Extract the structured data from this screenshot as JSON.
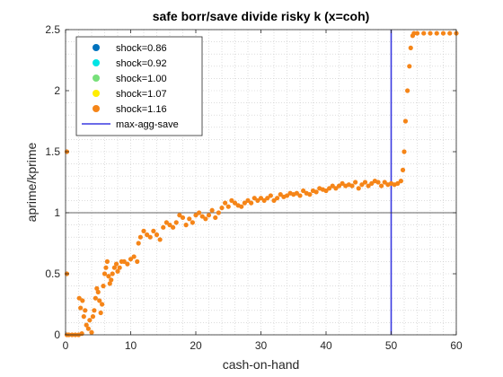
{
  "chart_data": {
    "type": "scatter",
    "title": "safe borr/save divide risky k (x=coh)",
    "xlabel": "cash-on-hand",
    "ylabel": "aprime/kprime",
    "xlim": [
      0,
      60
    ],
    "ylim": [
      0,
      2.5
    ],
    "xticks": [
      "0",
      "10",
      "20",
      "30",
      "40",
      "50",
      "60"
    ],
    "yticks": [
      "0",
      "0.5",
      "1",
      "1.5",
      "2",
      "2.5"
    ],
    "grid": "minor-dotted",
    "legend_position": "top-left",
    "series": [
      {
        "name": "shock=0.86",
        "color": "#0072bd",
        "points": []
      },
      {
        "name": "shock=0.92",
        "color": "#00e5e5",
        "points": []
      },
      {
        "name": "shock=1.00",
        "color": "#77e07a",
        "points": []
      },
      {
        "name": "shock=1.07",
        "color": "#ffee00",
        "points": []
      },
      {
        "name": "shock=1.16",
        "color": "#f58518",
        "points": [
          [
            0.2,
            0
          ],
          [
            0.2,
            0.5
          ],
          [
            0.2,
            1.5
          ],
          [
            0.5,
            0
          ],
          [
            1,
            0
          ],
          [
            1.5,
            0
          ],
          [
            2,
            0
          ],
          [
            2.5,
            0.01
          ],
          [
            2.1,
            0.3
          ],
          [
            2.3,
            0.22
          ],
          [
            2.6,
            0.28
          ],
          [
            2.8,
            0.15
          ],
          [
            3,
            0.2
          ],
          [
            3.2,
            0.08
          ],
          [
            3.5,
            0.05
          ],
          [
            3.7,
            0.12
          ],
          [
            4,
            0.02
          ],
          [
            4.2,
            0.15
          ],
          [
            4.4,
            0.2
          ],
          [
            4.6,
            0.3
          ],
          [
            4.8,
            0.38
          ],
          [
            5,
            0.35
          ],
          [
            5.2,
            0.28
          ],
          [
            5.4,
            0.18
          ],
          [
            5.6,
            0.25
          ],
          [
            5.8,
            0.4
          ],
          [
            6,
            0.5
          ],
          [
            6.2,
            0.55
          ],
          [
            6.4,
            0.6
          ],
          [
            6.6,
            0.48
          ],
          [
            6.8,
            0.42
          ],
          [
            7,
            0.45
          ],
          [
            7.2,
            0.5
          ],
          [
            7.5,
            0.55
          ],
          [
            7.8,
            0.58
          ],
          [
            8,
            0.52
          ],
          [
            8.3,
            0.55
          ],
          [
            8.6,
            0.6
          ],
          [
            9,
            0.6
          ],
          [
            9.5,
            0.58
          ],
          [
            10,
            0.62
          ],
          [
            10.5,
            0.64
          ],
          [
            11,
            0.6
          ],
          [
            11.2,
            0.75
          ],
          [
            11.5,
            0.8
          ],
          [
            12,
            0.85
          ],
          [
            12.5,
            0.82
          ],
          [
            13,
            0.8
          ],
          [
            13.5,
            0.85
          ],
          [
            14,
            0.82
          ],
          [
            14.5,
            0.78
          ],
          [
            15,
            0.88
          ],
          [
            15.5,
            0.92
          ],
          [
            16,
            0.9
          ],
          [
            16.5,
            0.88
          ],
          [
            17,
            0.92
          ],
          [
            17.5,
            0.98
          ],
          [
            18,
            0.96
          ],
          [
            18.5,
            0.9
          ],
          [
            19,
            0.95
          ],
          [
            19.5,
            0.92
          ],
          [
            20,
            0.98
          ],
          [
            20.5,
            1.0
          ],
          [
            21,
            0.97
          ],
          [
            21.5,
            0.95
          ],
          [
            22,
            0.98
          ],
          [
            22.5,
            1.02
          ],
          [
            23,
            0.96
          ],
          [
            23.5,
            1.0
          ],
          [
            24,
            1.04
          ],
          [
            24.5,
            1.08
          ],
          [
            25,
            1.05
          ],
          [
            25.5,
            1.1
          ],
          [
            26,
            1.08
          ],
          [
            26.5,
            1.06
          ],
          [
            27,
            1.05
          ],
          [
            27.5,
            1.08
          ],
          [
            28,
            1.1
          ],
          [
            28.5,
            1.08
          ],
          [
            29,
            1.12
          ],
          [
            29.5,
            1.1
          ],
          [
            30,
            1.12
          ],
          [
            30.5,
            1.1
          ],
          [
            31,
            1.12
          ],
          [
            31.5,
            1.14
          ],
          [
            32,
            1.1
          ],
          [
            32.5,
            1.12
          ],
          [
            33,
            1.15
          ],
          [
            33.5,
            1.13
          ],
          [
            34,
            1.14
          ],
          [
            34.5,
            1.16
          ],
          [
            35,
            1.15
          ],
          [
            35.5,
            1.16
          ],
          [
            36,
            1.14
          ],
          [
            36.5,
            1.18
          ],
          [
            37,
            1.16
          ],
          [
            37.5,
            1.15
          ],
          [
            38,
            1.18
          ],
          [
            38.5,
            1.17
          ],
          [
            39,
            1.2
          ],
          [
            39.5,
            1.19
          ],
          [
            40,
            1.18
          ],
          [
            40.5,
            1.2
          ],
          [
            41,
            1.22
          ],
          [
            41.5,
            1.2
          ],
          [
            42,
            1.22
          ],
          [
            42.5,
            1.24
          ],
          [
            43,
            1.22
          ],
          [
            43.5,
            1.23
          ],
          [
            44,
            1.22
          ],
          [
            44.5,
            1.25
          ],
          [
            45,
            1.2
          ],
          [
            45.5,
            1.23
          ],
          [
            46,
            1.25
          ],
          [
            46.5,
            1.22
          ],
          [
            47,
            1.24
          ],
          [
            47.5,
            1.26
          ],
          [
            48,
            1.25
          ],
          [
            48.5,
            1.22
          ],
          [
            49,
            1.25
          ],
          [
            49.5,
            1.23
          ],
          [
            50,
            1.24
          ],
          [
            50.5,
            1.23
          ],
          [
            51,
            1.24
          ],
          [
            51.5,
            1.26
          ],
          [
            51.8,
            1.35
          ],
          [
            52,
            1.5
          ],
          [
            52.2,
            1.75
          ],
          [
            52.5,
            2.0
          ],
          [
            52.8,
            2.2
          ],
          [
            53,
            2.35
          ],
          [
            53.3,
            2.45
          ],
          [
            53.5,
            2.47
          ],
          [
            54,
            2.47
          ],
          [
            55,
            2.47
          ],
          [
            56,
            2.47
          ],
          [
            57,
            2.47
          ],
          [
            58,
            2.47
          ],
          [
            59,
            2.47
          ],
          [
            60,
            2.47
          ]
        ]
      }
    ],
    "reference_lines": [
      {
        "name": "max-agg-save",
        "orientation": "vertical",
        "x": 50,
        "color": "#3a3ae0"
      },
      {
        "orientation": "horizontal",
        "y": 1,
        "color": "#333333"
      }
    ]
  }
}
